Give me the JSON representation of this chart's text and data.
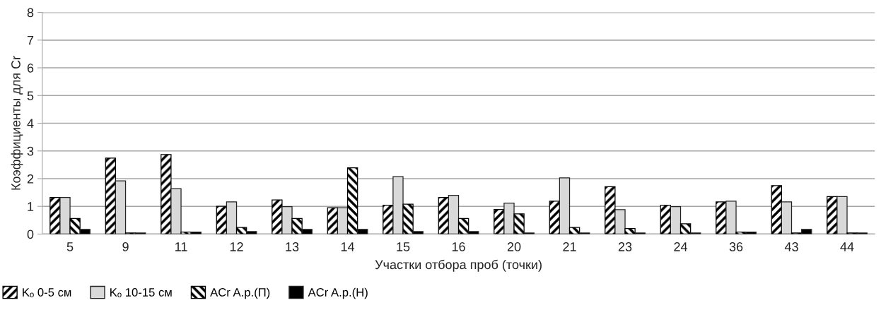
{
  "chart_data": {
    "type": "bar",
    "xlabel": "Участки отбора проб (точки)",
    "ylabel": "Коэффициенты для Cr",
    "categories": [
      "5",
      "9",
      "11",
      "12",
      "13",
      "14",
      "15",
      "16",
      "20",
      "21",
      "23",
      "24",
      "36",
      "43",
      "44"
    ],
    "series": [
      {
        "name": "Kₒ 0-5 см",
        "color": "#000000",
        "values": [
          1.32,
          2.74,
          2.87,
          1.0,
          1.23,
          0.95,
          1.04,
          1.32,
          0.89,
          1.19,
          1.71,
          1.04,
          1.16,
          1.75,
          1.35
        ]
      },
      {
        "name": "Kₒ 10-15 см",
        "color": "#d9d9d9",
        "values": [
          1.32,
          1.92,
          1.64,
          1.16,
          0.99,
          0.95,
          2.07,
          1.4,
          1.12,
          2.03,
          0.88,
          0.99,
          1.19,
          1.16,
          1.35
        ]
      },
      {
        "name": "ACr A.p.(П)",
        "color": "#000000",
        "values": [
          0.56,
          0.04,
          0.07,
          0.24,
          0.56,
          2.39,
          1.08,
          0.56,
          0.73,
          0.24,
          0.2,
          0.37,
          0.07,
          0.04,
          0.04
        ]
      },
      {
        "name": "ACr A.p.(Н)",
        "color": "#000000",
        "values": [
          0.17,
          0.04,
          0.07,
          0.09,
          0.17,
          0.17,
          0.09,
          0.09,
          0.04,
          0.04,
          0.04,
          0.04,
          0.07,
          0.17,
          0.04
        ]
      }
    ],
    "ylim": [
      0,
      8
    ],
    "yticks": [
      0,
      1,
      2,
      3,
      4,
      5,
      6,
      7,
      8
    ],
    "grid": "y",
    "legend": "bottom left"
  }
}
